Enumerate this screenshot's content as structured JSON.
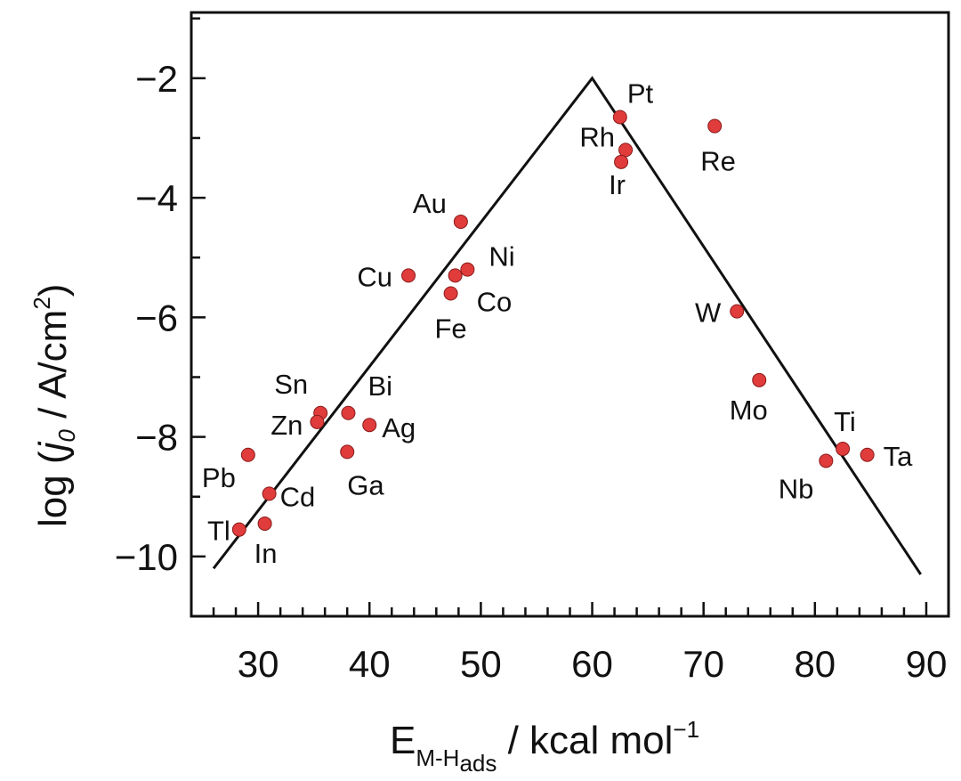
{
  "chart_data": {
    "type": "scatter",
    "title": "",
    "xlim": [
      24,
      92
    ],
    "ylim": [
      -11,
      -0.9
    ],
    "xticks": [
      "30",
      "40",
      "50",
      "60",
      "70",
      "80",
      "90"
    ],
    "yticks": [
      "−2",
      "−4",
      "−6",
      "−8",
      "−10"
    ],
    "xlabel": {
      "main": "E",
      "sub": "M-H",
      "subsub": "ads",
      "rest": " / kcal mol",
      "sup": "−1"
    },
    "ylabel": {
      "prefix": "log (",
      "italic": "j",
      "sub": "0",
      "rest": " / A/cm",
      "sup": "2",
      "suffix": ")"
    },
    "volcano_line": [
      [
        26,
        -10.2
      ],
      [
        60,
        -2.0
      ],
      [
        89.5,
        -10.3
      ]
    ],
    "points": [
      {
        "label": "Pt",
        "x": 62.5,
        "y": -2.65
      },
      {
        "label": "Rh",
        "x": 63.0,
        "y": -3.2
      },
      {
        "label": "Ir",
        "x": 62.6,
        "y": -3.4
      },
      {
        "label": "Re",
        "x": 71.0,
        "y": -2.8
      },
      {
        "label": "Au",
        "x": 48.2,
        "y": -4.4
      },
      {
        "label": "Cu",
        "x": 43.5,
        "y": -5.3
      },
      {
        "label": "Ni",
        "x": 48.8,
        "y": -5.2
      },
      {
        "label": "Co",
        "x": 47.7,
        "y": -5.3
      },
      {
        "label": "Fe",
        "x": 47.3,
        "y": -5.6
      },
      {
        "label": "W",
        "x": 73.0,
        "y": -5.9
      },
      {
        "label": "Mo",
        "x": 75.0,
        "y": -7.05
      },
      {
        "label": "Sn",
        "x": 35.6,
        "y": -7.6
      },
      {
        "label": "Zn",
        "x": 35.3,
        "y": -7.75
      },
      {
        "label": "Bi",
        "x": 38.1,
        "y": -7.6
      },
      {
        "label": "Ag",
        "x": 40.0,
        "y": -7.8
      },
      {
        "label": "Ga",
        "x": 38.0,
        "y": -8.25
      },
      {
        "label": "Pb",
        "x": 29.1,
        "y": -8.3
      },
      {
        "label": "Cd",
        "x": 31.0,
        "y": -8.95
      },
      {
        "label": "Tl",
        "x": 28.3,
        "y": -9.55
      },
      {
        "label": "In",
        "x": 30.6,
        "y": -9.45
      },
      {
        "label": "Ti",
        "x": 82.5,
        "y": -8.2
      },
      {
        "label": "Ta",
        "x": 84.7,
        "y": -8.3
      },
      {
        "label": "Nb",
        "x": 81.0,
        "y": -8.4
      }
    ],
    "point_color": "#e03c3c",
    "line_color": "#111111"
  }
}
